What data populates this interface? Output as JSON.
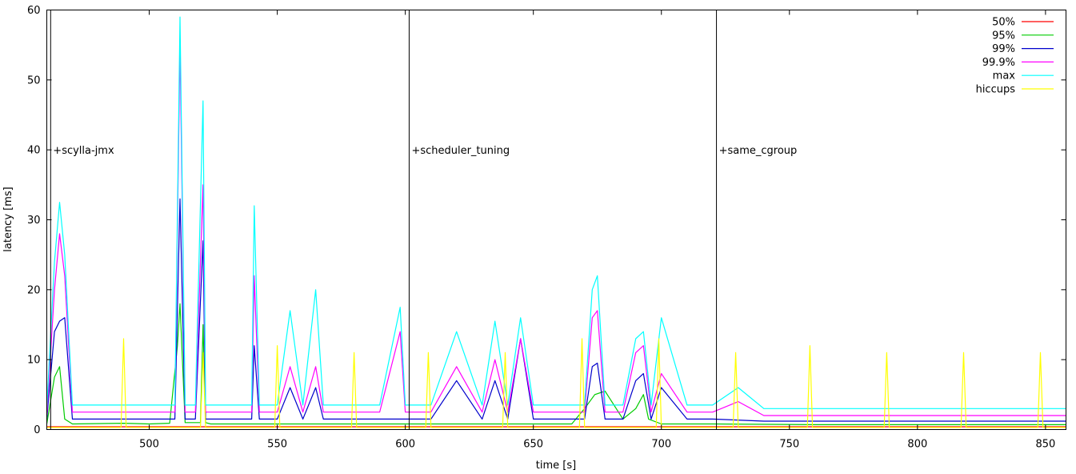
{
  "chart_data": {
    "type": "line",
    "xlabel": "time [s]",
    "ylabel": "latency [ms]",
    "xlim": [
      460,
      858
    ],
    "ylim": [
      0,
      60
    ],
    "x_ticks": [
      500,
      550,
      600,
      650,
      700,
      750,
      800,
      850
    ],
    "y_ticks": [
      0,
      10,
      20,
      30,
      40,
      50,
      60
    ],
    "grid": false,
    "legend_position": "top-right",
    "annotations": [
      {
        "x": 461.5,
        "y": 40,
        "text": "+scylla-jmx"
      },
      {
        "x": 601.5,
        "y": 40,
        "text": "+scheduler_tuning"
      },
      {
        "x": 721.5,
        "y": 40,
        "text": "+same_cgroup"
      }
    ],
    "vertical_markers": [
      461.5,
      601.5,
      721.5
    ],
    "series": [
      {
        "name": "50%",
        "color": "#ff0000",
        "x": [
          460,
          480,
          500,
          520,
          540,
          560,
          580,
          600,
          620,
          640,
          660,
          680,
          700,
          720,
          740,
          760,
          780,
          800,
          820,
          840,
          858
        ],
        "values": [
          0.4,
          0.4,
          0.4,
          0.4,
          0.4,
          0.4,
          0.4,
          0.4,
          0.4,
          0.4,
          0.4,
          0.4,
          0.4,
          0.4,
          0.4,
          0.4,
          0.4,
          0.4,
          0.4,
          0.4,
          0.4
        ]
      },
      {
        "name": "95%",
        "color": "#00cc00",
        "x": [
          460,
          463,
          465,
          467,
          470,
          490,
          500,
          508,
          511,
          512,
          514,
          520,
          521,
          522,
          524,
          550,
          580,
          600,
          620,
          640,
          665,
          670,
          674,
          678,
          685,
          690,
          693,
          695,
          700,
          720,
          760,
          800,
          858
        ],
        "values": [
          0.8,
          7.5,
          9,
          1.5,
          0.8,
          0.9,
          0.8,
          0.9,
          12,
          18,
          1,
          1,
          15,
          1,
          0.8,
          0.8,
          0.8,
          0.8,
          0.8,
          0.8,
          0.8,
          3,
          5,
          5.5,
          1.5,
          3,
          5,
          1.5,
          0.8,
          0.8,
          0.7,
          0.7,
          0.7
        ]
      },
      {
        "name": "99%",
        "color": "#0000cc",
        "x": [
          460,
          463,
          465,
          467,
          470,
          480,
          490,
          495,
          500,
          505,
          510,
          512,
          514,
          518,
          521,
          522,
          525,
          530,
          540,
          541,
          543,
          550,
          555,
          560,
          565,
          568,
          570,
          580,
          590,
          600,
          610,
          620,
          630,
          635,
          640,
          645,
          650,
          660,
          670,
          673,
          675,
          678,
          680,
          685,
          690,
          693,
          696,
          700,
          710,
          720,
          740,
          760,
          780,
          800,
          820,
          840,
          858
        ],
        "values": [
          1.5,
          14,
          15.5,
          16,
          1.5,
          1.5,
          1.5,
          1.5,
          1.5,
          1.5,
          1.5,
          33,
          1.5,
          1.5,
          27,
          1.5,
          1.5,
          1.5,
          1.5,
          12,
          1.5,
          1.5,
          6,
          1.5,
          6,
          1.5,
          1.5,
          1.5,
          1.5,
          1.5,
          1.5,
          7,
          1.5,
          7,
          1.5,
          13,
          1.5,
          1.5,
          1.5,
          9,
          9.5,
          1.5,
          1.5,
          1.5,
          7,
          8,
          1.5,
          6,
          1.5,
          1.5,
          1.2,
          1.2,
          1.2,
          1.2,
          1.2,
          1.2,
          1.2
        ]
      },
      {
        "name": "99.9%",
        "color": "#ff00ff",
        "x": [
          460,
          463,
          465,
          467,
          470,
          480,
          490,
          495,
          500,
          505,
          510,
          512,
          514,
          518,
          521,
          522,
          525,
          530,
          540,
          541,
          543,
          550,
          555,
          560,
          565,
          568,
          570,
          580,
          590,
          598,
          600,
          610,
          620,
          630,
          635,
          640,
          645,
          650,
          660,
          670,
          673,
          675,
          678,
          680,
          685,
          690,
          693,
          696,
          700,
          710,
          720,
          730,
          740,
          760,
          780,
          800,
          820,
          840,
          858
        ],
        "values": [
          2,
          20,
          28,
          22,
          2.5,
          2.5,
          2.5,
          2.5,
          2.5,
          2.5,
          2.5,
          55,
          2.5,
          2.5,
          35,
          2.5,
          2.5,
          2.5,
          2.5,
          22,
          2.5,
          2.5,
          9,
          2.5,
          9,
          2.5,
          2.5,
          2.5,
          2.5,
          14,
          2.5,
          2.5,
          9,
          2.5,
          10,
          2.5,
          13,
          2.5,
          2.5,
          2.5,
          16,
          17,
          2.5,
          2.5,
          2.5,
          11,
          12,
          2.5,
          8,
          2.5,
          2.5,
          4,
          2,
          2,
          2,
          2,
          2,
          2,
          2
        ]
      },
      {
        "name": "max",
        "color": "#00ffff",
        "x": [
          460,
          463,
          465,
          467,
          470,
          480,
          490,
          495,
          500,
          505,
          510,
          512,
          514,
          518,
          521,
          522,
          525,
          530,
          540,
          541,
          543,
          550,
          555,
          560,
          565,
          568,
          570,
          580,
          590,
          598,
          600,
          610,
          620,
          630,
          635,
          640,
          645,
          650,
          660,
          670,
          673,
          675,
          678,
          680,
          685,
          690,
          693,
          696,
          700,
          710,
          720,
          730,
          740,
          760,
          780,
          800,
          820,
          840,
          858
        ],
        "values": [
          3,
          24,
          32.5,
          25,
          3.5,
          3.5,
          3.5,
          3.5,
          3.5,
          3.5,
          3.5,
          59,
          3.5,
          3.5,
          47,
          3.5,
          3.5,
          3.5,
          3.5,
          32,
          3.5,
          3.5,
          17,
          3.5,
          20,
          3.5,
          3.5,
          3.5,
          3.5,
          17.5,
          3.5,
          3.5,
          14,
          3.5,
          15.5,
          3.5,
          16,
          3.5,
          3.5,
          3.5,
          20,
          22,
          3.5,
          3.5,
          3.5,
          13,
          14,
          3.5,
          16,
          3.5,
          3.5,
          6,
          3,
          3,
          3,
          3,
          3,
          3,
          3
        ]
      },
      {
        "name": "hiccups",
        "color": "#ffff00",
        "x": [
          460,
          489,
          490,
          491,
          500,
          520,
          521,
          522,
          549,
          550,
          551,
          579,
          580,
          581,
          608,
          609,
          610,
          638,
          639,
          640,
          668,
          669,
          670,
          698,
          699,
          700,
          728,
          729,
          730,
          757,
          758,
          759,
          787,
          788,
          789,
          817,
          818,
          819,
          847,
          848,
          849,
          858
        ],
        "values": [
          0.3,
          0.3,
          13,
          0.3,
          0.3,
          0.3,
          11,
          0.3,
          0.3,
          12,
          0.3,
          0.3,
          11,
          0.3,
          0.3,
          11,
          0.3,
          0.3,
          11,
          0.3,
          0.3,
          13,
          0.3,
          0.3,
          13,
          0.3,
          0.3,
          11,
          0.3,
          0.3,
          12,
          0.3,
          0.3,
          11,
          0.3,
          0.3,
          11,
          0.3,
          0.3,
          11,
          0.3,
          0.3
        ]
      }
    ]
  }
}
